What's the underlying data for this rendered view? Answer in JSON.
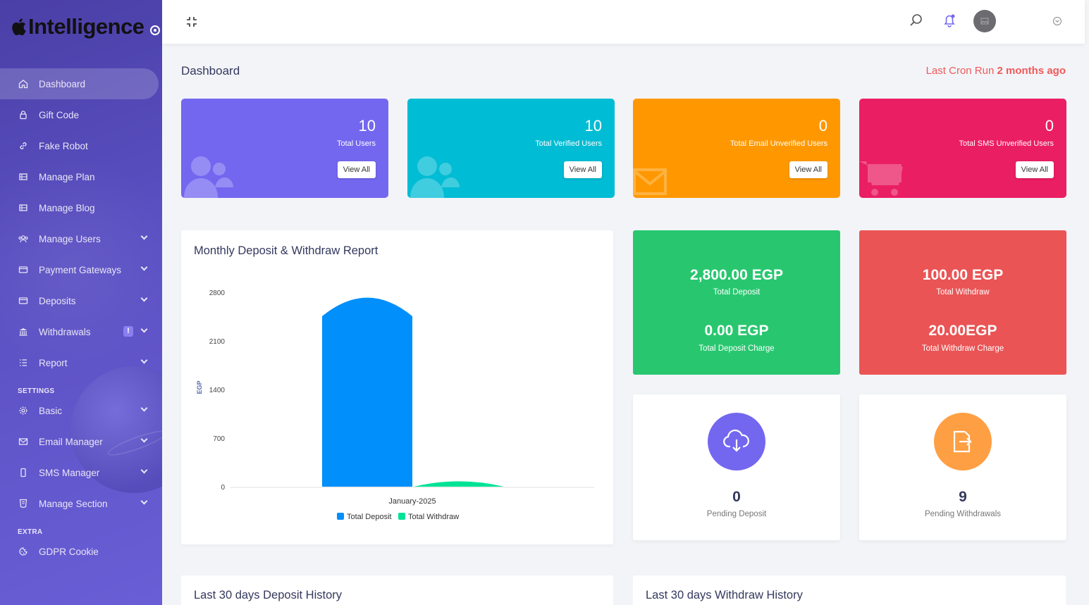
{
  "brand": {
    "name": "Intelligence"
  },
  "sidebar": {
    "items": [
      {
        "label": "Dashboard",
        "icon": "home-icon"
      },
      {
        "label": "Gift Code",
        "icon": "lock-icon"
      },
      {
        "label": "Fake Robot",
        "icon": "link-icon"
      },
      {
        "label": "Manage Plan",
        "icon": "grid-icon"
      },
      {
        "label": "Manage Blog",
        "icon": "grid-icon"
      },
      {
        "label": "Manage Users",
        "icon": "users-icon"
      },
      {
        "label": "Payment Gateways",
        "icon": "card-icon"
      },
      {
        "label": "Deposits",
        "icon": "card-icon"
      },
      {
        "label": "Withdrawals",
        "icon": "bank-icon",
        "badge": "!"
      },
      {
        "label": "Report",
        "icon": "list-icon"
      }
    ],
    "settings_header": "SETTINGS",
    "settings_items": [
      {
        "label": "Basic",
        "icon": "gear-icon"
      },
      {
        "label": "Email Manager",
        "icon": "mail-icon"
      },
      {
        "label": "SMS Manager",
        "icon": "phone-icon"
      },
      {
        "label": "Manage Section",
        "icon": "html-icon"
      }
    ],
    "extra_header": "EXTRA",
    "extra_items": [
      {
        "label": "GDPR Cookie",
        "icon": "cookie-icon"
      }
    ]
  },
  "header": {
    "page_title": "Dashboard",
    "cron_prefix": "Last Cron Run",
    "cron_value": "2 months ago"
  },
  "stats": [
    {
      "value": "10",
      "label": "Total Users",
      "button": "View All",
      "color": "#7367f0"
    },
    {
      "value": "10",
      "label": "Total Verified Users",
      "button": "View All",
      "color": "#00bcd4"
    },
    {
      "value": "0",
      "label": "Total Email Unverified Users",
      "button": "View All",
      "color": "#ff9800"
    },
    {
      "value": "0",
      "label": "Total SMS Unverified Users",
      "button": "View All",
      "color": "#ea1e63"
    }
  ],
  "summary": {
    "deposit": {
      "amount": "2,800.00 EGP",
      "label": "Total Deposit",
      "charge": "0.00 EGP",
      "charge_label": "Total Deposit Charge",
      "color": "#28c76f"
    },
    "withdraw": {
      "amount": "100.00 EGP",
      "label": "Total Withdraw",
      "charge": "20.00EGP",
      "charge_label": "Total Withdraw Charge",
      "color": "#ea5455"
    }
  },
  "pending": {
    "deposit": {
      "value": "0",
      "label": "Pending Deposit",
      "color": "#7367f0"
    },
    "withdraw": {
      "value": "9",
      "label": "Pending Withdrawals",
      "color": "#ff9f43"
    }
  },
  "chart_title": "Monthly Deposit & Withdraw Report",
  "chart_data": {
    "type": "bar",
    "categories": [
      "January-2025"
    ],
    "series": [
      {
        "name": "Total Deposit",
        "values": [
          2800
        ],
        "color": "#008ffb"
      },
      {
        "name": "Total Withdraw",
        "values": [
          100
        ],
        "color": "#00e396"
      }
    ],
    "ylabel": "EGP",
    "ylim": [
      0,
      2800
    ],
    "yticks": [
      "2800",
      "2100",
      "1400",
      "700",
      "0"
    ],
    "legend": "bottom-center"
  },
  "history": {
    "deposit_title": "Last 30 days Deposit History",
    "withdraw_title": "Last 30 days Withdraw History"
  }
}
